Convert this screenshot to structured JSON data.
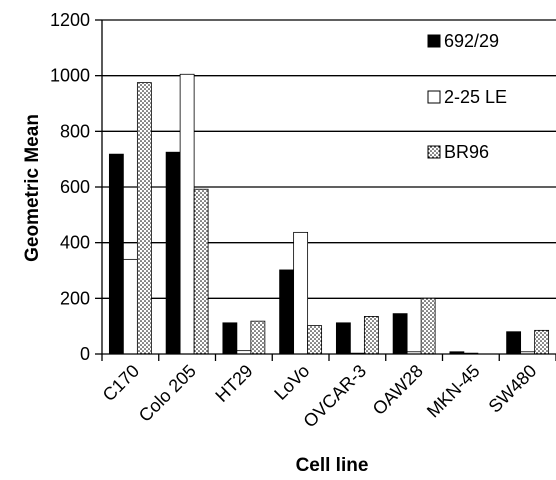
{
  "chart_data": {
    "type": "bar",
    "title": "",
    "xlabel": "Cell line",
    "ylabel": "Geometric Mean",
    "ylim": [
      0,
      1200
    ],
    "yticks": [
      "0",
      "200",
      "400",
      "600",
      "800",
      "1000",
      "1200"
    ],
    "grid": true,
    "legend_position": "top-right",
    "categories": [
      "C170",
      "Colo 205",
      "HT29",
      "LoVo",
      "OVCAR-3",
      "OAW28",
      "MKN-45",
      "SW480"
    ],
    "series": [
      {
        "name": "692/29",
        "fill": "black",
        "values": [
          718,
          725,
          112,
          302,
          112,
          145,
          8,
          80
        ]
      },
      {
        "name": "2-25 LE",
        "fill": "white",
        "values": [
          340,
          1005,
          12,
          437,
          3,
          8,
          3,
          8
        ]
      },
      {
        "name": "BR96",
        "fill": "dotted",
        "values": [
          975,
          592,
          118,
          102,
          135,
          200,
          0,
          85
        ]
      }
    ]
  }
}
